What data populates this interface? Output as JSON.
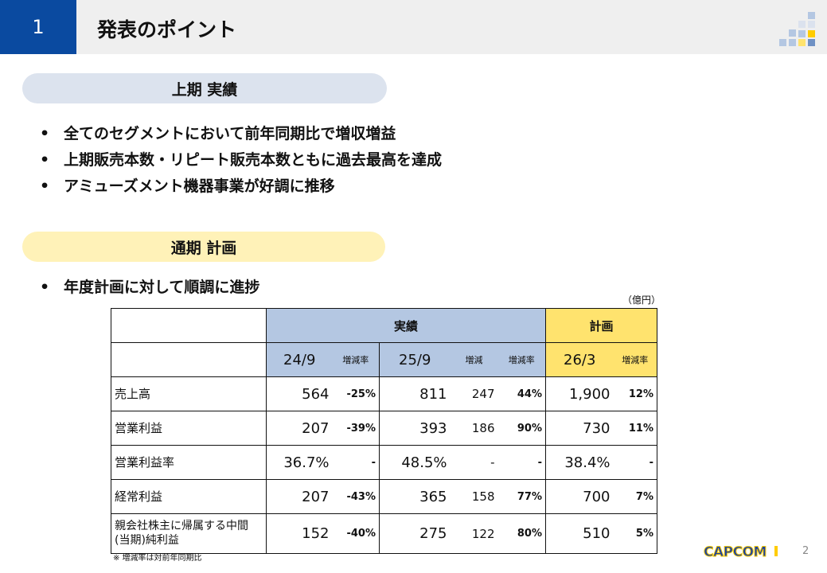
{
  "header": {
    "number": "1",
    "title": "発表のポイント"
  },
  "first_half": {
    "label": "上期 実績",
    "bullets": [
      "全てのセグメントにおいて前年同期比で増収増益",
      "上期販売本数・リピート販売本数ともに過去最高を達成",
      "アミューズメント機器事業が好調に推移"
    ]
  },
  "full_year": {
    "label": "通期 計画",
    "bullets": [
      "年度計画に対して順調に進捗"
    ]
  },
  "table": {
    "unit": "（億円）",
    "group_actual": "実績",
    "group_plan": "計画",
    "cols": [
      "24/9",
      "増減率",
      "25/9",
      "増減",
      "増減率",
      "26/3",
      "増減率"
    ],
    "rows": [
      {
        "label": "売上高",
        "v": [
          "564",
          "-25%",
          "811",
          "247",
          "44%",
          "1,900",
          "12%"
        ]
      },
      {
        "label": "営業利益",
        "v": [
          "207",
          "-39%",
          "393",
          "186",
          "90%",
          "730",
          "11%"
        ]
      },
      {
        "label": "営業利益率",
        "v": [
          "36.7%",
          "-",
          "48.5%",
          "-",
          "-",
          "38.4%",
          "-"
        ]
      },
      {
        "label": "経常利益",
        "v": [
          "207",
          "-43%",
          "365",
          "158",
          "77%",
          "700",
          "7%"
        ]
      },
      {
        "label": "親会社株主に帰属する中間(当期)純利益",
        "v": [
          "152",
          "-40%",
          "275",
          "122",
          "80%",
          "510",
          "5%"
        ]
      }
    ]
  },
  "note": "※ 増減率は対前年同期比",
  "footer": {
    "logo": "CAPCOM",
    "page": "2"
  },
  "colors": {
    "brand_blue": "#0a4aa0",
    "actual_bg": "#b4c7e2",
    "plan_bg": "#ffe36e"
  }
}
